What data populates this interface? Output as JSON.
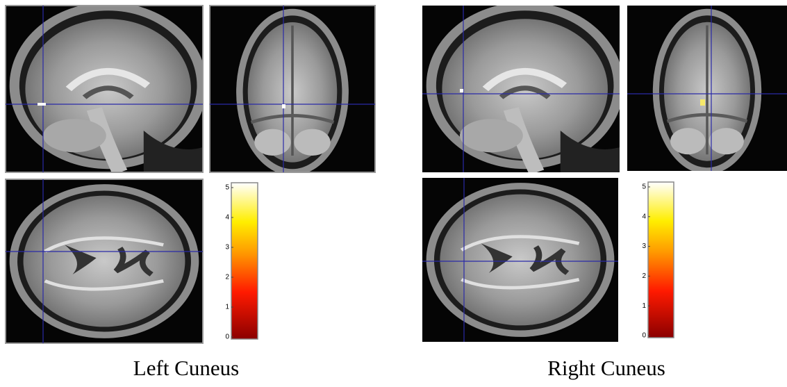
{
  "panels": [
    {
      "caption": "Left Cuneus",
      "colorbar": {
        "ticks": [
          0,
          1,
          2,
          3,
          4,
          5
        ]
      }
    },
    {
      "caption": "Right Cuneus",
      "colorbar": {
        "ticks": [
          0,
          1,
          2,
          3,
          4,
          5
        ]
      }
    }
  ]
}
